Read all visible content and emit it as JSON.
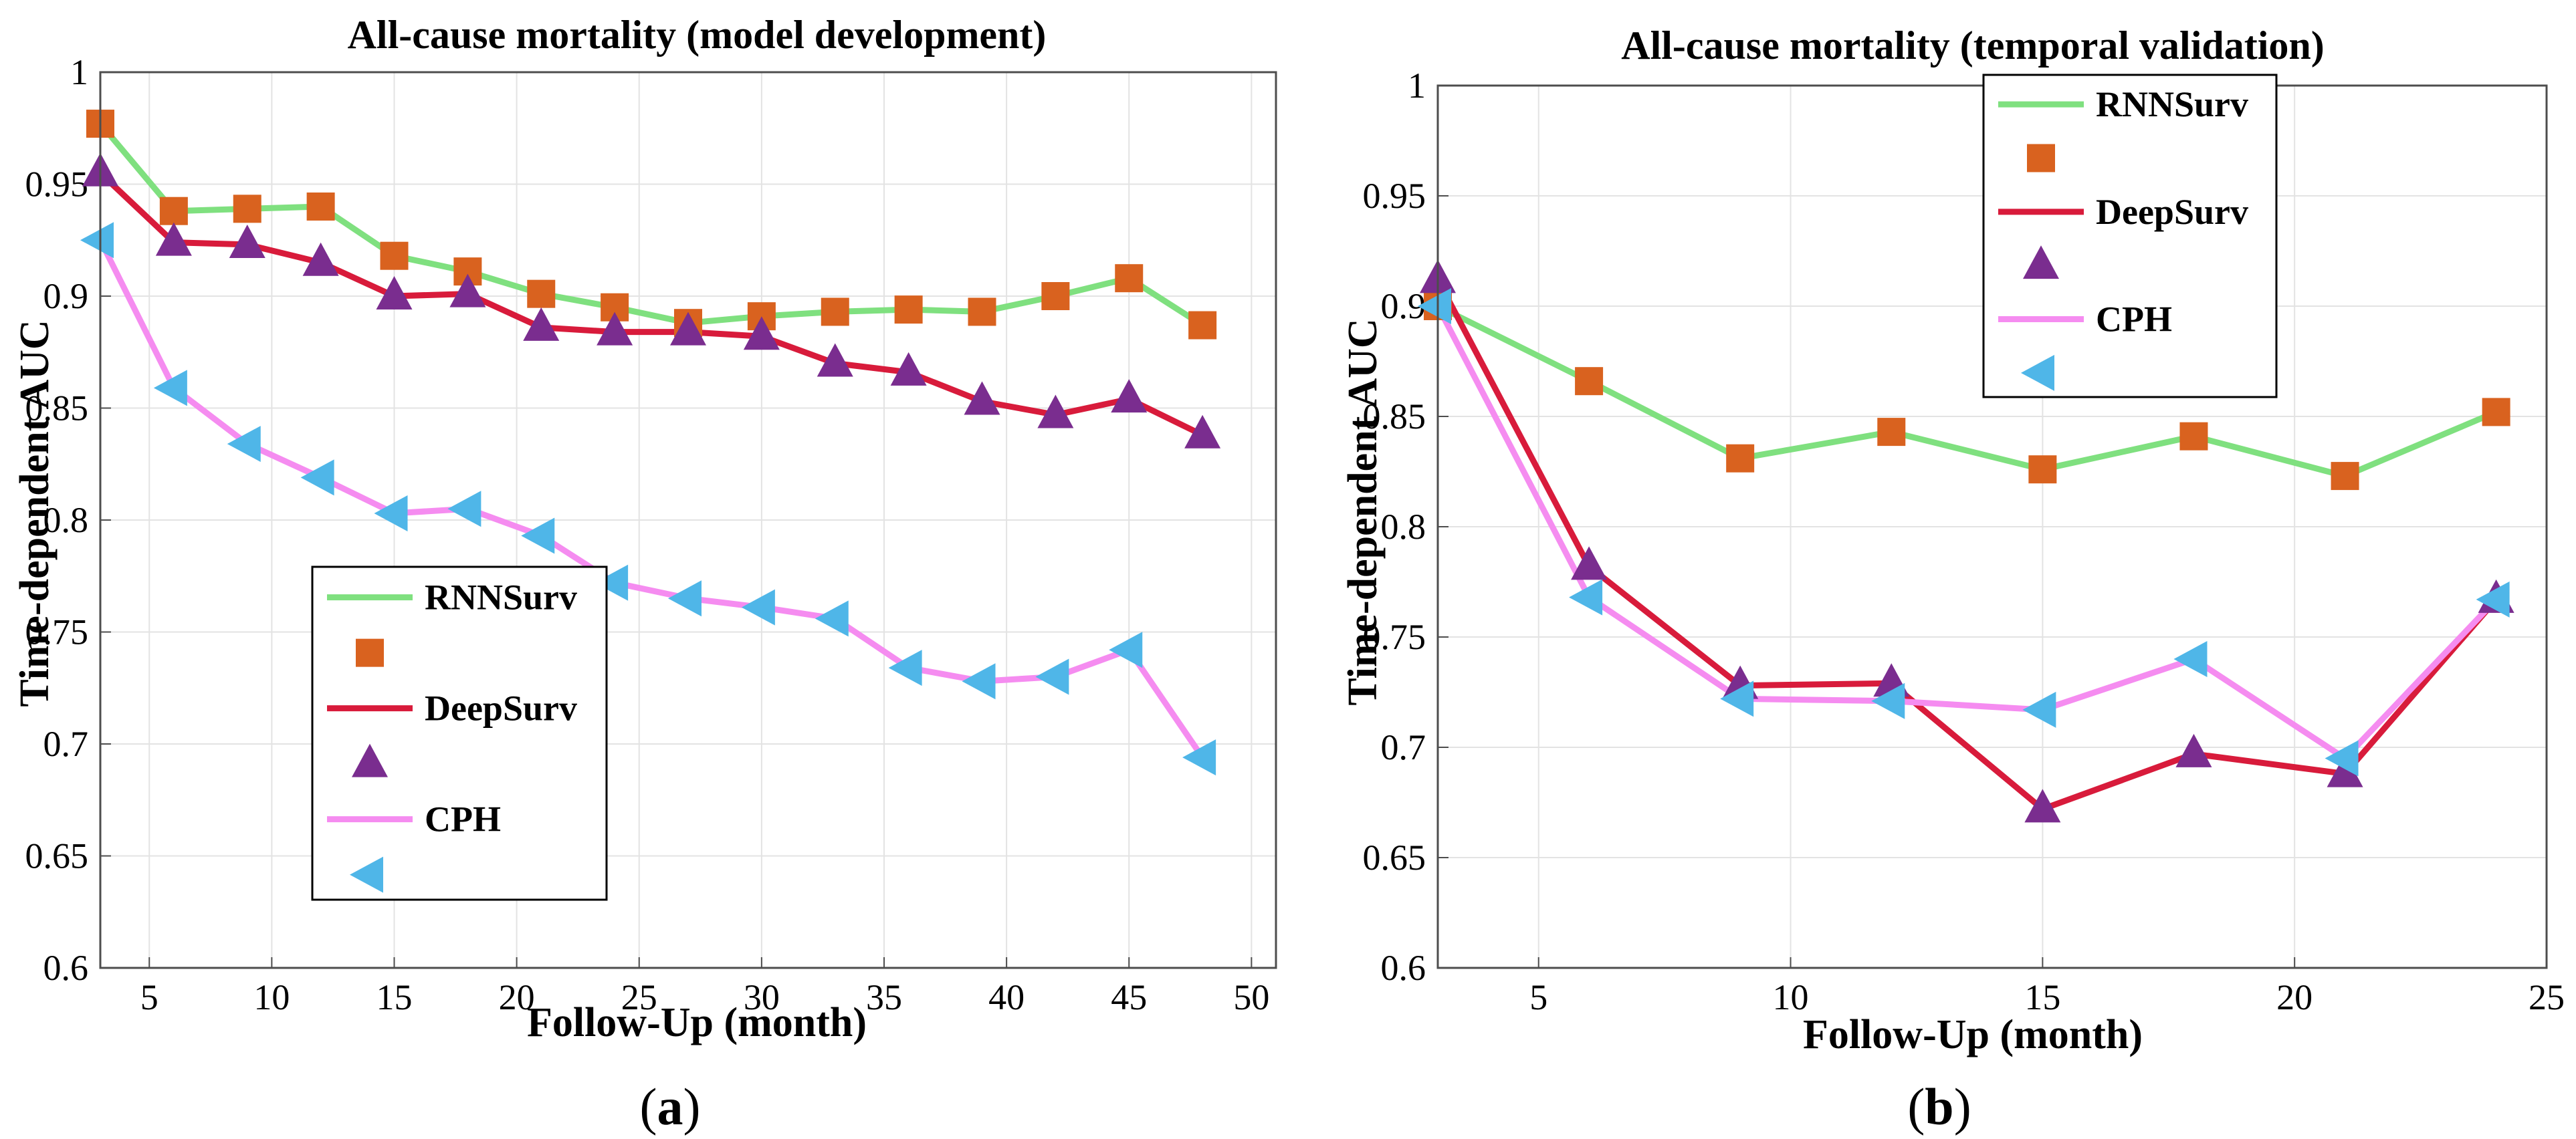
{
  "colors": {
    "RNNSurv_line": "#7fe07f",
    "RNNSurv_marker": "#d9621f",
    "DeepSurv_line": "#d81b3b",
    "DeepSurv_marker": "#7a2d8f",
    "CPH_line": "#f58cf0",
    "CPH_marker": "#4fb6e8",
    "grid": "#e3e3e3",
    "axis": "#4d4d4d"
  },
  "chart_data": [
    {
      "type": "line",
      "panel": "(a)",
      "panel_letter": "a",
      "title": "All-cause mortality (model development)",
      "xlabel": "Follow-Up (month)",
      "ylabel": "Time-dependent AUC",
      "xlim": [
        3,
        51
      ],
      "ylim": [
        0.6,
        1.0
      ],
      "xticks": [
        5,
        10,
        15,
        20,
        25,
        30,
        35,
        40,
        45,
        50
      ],
      "yticks": [
        0.6,
        0.65,
        0.7,
        0.75,
        0.8,
        0.85,
        0.9,
        0.95,
        1.0
      ],
      "ytick_labels": [
        "0.6",
        "0.65",
        "0.7",
        "0.75",
        "0.8",
        "0.85",
        "0.9",
        "0.95",
        "1"
      ],
      "grid": true,
      "legend_position": "lower-left",
      "x": [
        3,
        6,
        9,
        12,
        15,
        18,
        21,
        24,
        27,
        30,
        33,
        36,
        39,
        42,
        45,
        48
      ],
      "series": [
        {
          "name": "RNNSurv",
          "marker": "square",
          "values": [
            0.977,
            0.938,
            0.939,
            0.94,
            0.918,
            0.911,
            0.901,
            0.895,
            0.888,
            0.891,
            0.893,
            0.894,
            0.893,
            0.9,
            0.908,
            0.887
          ]
        },
        {
          "name": "DeepSurv",
          "marker": "triangle-up",
          "values": [
            0.955,
            0.924,
            0.923,
            0.915,
            0.9,
            0.901,
            0.886,
            0.884,
            0.884,
            0.882,
            0.87,
            0.866,
            0.853,
            0.847,
            0.854,
            0.838
          ]
        },
        {
          "name": "CPH",
          "marker": "triangle-left",
          "values": [
            0.925,
            0.859,
            0.834,
            0.819,
            0.803,
            0.805,
            0.793,
            0.772,
            0.765,
            0.761,
            0.756,
            0.734,
            0.728,
            0.73,
            0.742,
            0.694
          ]
        }
      ]
    },
    {
      "type": "line",
      "panel": "(b)",
      "panel_letter": "b",
      "title": "All-cause mortality (temporal validation)",
      "xlabel": "Follow-Up (month)",
      "ylabel": "Time-dependent AUC",
      "xlim": [
        3,
        25
      ],
      "ylim": [
        0.6,
        1.0
      ],
      "xticks": [
        5,
        10,
        15,
        20,
        25
      ],
      "yticks": [
        0.6,
        0.65,
        0.7,
        0.75,
        0.8,
        0.85,
        0.9,
        0.95,
        1.0
      ],
      "ytick_labels": [
        "0.6",
        "0.65",
        "0.7",
        "0.75",
        "0.8",
        "0.85",
        "0.9",
        "0.95",
        "1"
      ],
      "grid": true,
      "legend_position": "top-left",
      "x": [
        3,
        6,
        9,
        12,
        15,
        18,
        21,
        24
      ],
      "series": [
        {
          "name": "RNNSurv",
          "marker": "square",
          "values": [
            0.9,
            0.866,
            0.831,
            0.843,
            0.826,
            0.841,
            0.823,
            0.852
          ]
        },
        {
          "name": "DeepSurv",
          "marker": "triangle-up",
          "values": [
            0.912,
            0.782,
            0.728,
            0.729,
            0.672,
            0.697,
            0.688,
            0.767
          ]
        },
        {
          "name": "CPH",
          "marker": "triangle-left",
          "values": [
            0.9,
            0.768,
            0.722,
            0.721,
            0.717,
            0.74,
            0.695,
            0.767
          ]
        }
      ]
    }
  ]
}
